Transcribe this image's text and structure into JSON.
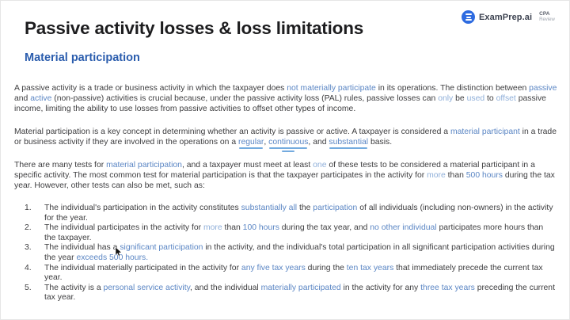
{
  "header": {
    "title": "Passive activity losses & loss limitations",
    "subtitle": "Material participation",
    "logo": {
      "brand": "ExamPrep.ai",
      "product_top": "CPA",
      "product_bottom": "Review"
    }
  },
  "colors": {
    "brand_blue": "#2e6be0",
    "subtitle_blue": "#2a5cad",
    "highlight_blue": "#5b86c4",
    "highlight_light_blue": "#8fafd9",
    "underline_blue": "#74abdf",
    "body_text": "#3d3d3f",
    "title_text": "#1d1d1f"
  },
  "content": {
    "paragraphs": [
      {
        "segments": [
          {
            "t": "A passive activity is a trade or business activity in which the taxpayer does "
          },
          {
            "t": "not materially participate",
            "c": "hl"
          },
          {
            "t": " in its operations. The distinction between "
          },
          {
            "t": "passive",
            "c": "hl"
          },
          {
            "t": " and "
          },
          {
            "t": "active",
            "c": "hl"
          },
          {
            "t": " (non-passive) activities is crucial because, under the passive activity loss (PAL) rules, passive losses can "
          },
          {
            "t": "only",
            "c": "hl2"
          },
          {
            "t": " be "
          },
          {
            "t": "used",
            "c": "hl2"
          },
          {
            "t": " to "
          },
          {
            "t": "offset",
            "c": "hl2"
          },
          {
            "t": " passive income, limiting the ability to use losses from passive activities to offset other types of income."
          }
        ]
      },
      {
        "segments": [
          {
            "t": "Material participation is a key concept in determining whether an activity is passive or active. A taxpayer is considered a "
          },
          {
            "t": "material participant",
            "c": "hl"
          },
          {
            "t": " in a trade or business activity if they are involved in the operations on a "
          },
          {
            "t": "regular",
            "c": "hl u1"
          },
          {
            "t": ", "
          },
          {
            "t": "continuous",
            "c": "hl u2"
          },
          {
            "t": ", and "
          },
          {
            "t": "substantial",
            "c": "hl u1"
          },
          {
            "t": " basis."
          }
        ]
      },
      {
        "segments": [
          {
            "t": "There are many tests for "
          },
          {
            "t": "material participation",
            "c": "hl"
          },
          {
            "t": ", and a taxpayer must meet at least "
          },
          {
            "t": "one",
            "c": "hl2"
          },
          {
            "t": " of these tests to be considered a material participant in a specific activity. The most common test for material participation is that the taxpayer participates in the activity for "
          },
          {
            "t": "more",
            "c": "hl2"
          },
          {
            "t": " than "
          },
          {
            "t": "500 hours",
            "c": "hl"
          },
          {
            "t": " during the tax year. However, other tests can also be met, such as:"
          }
        ]
      }
    ],
    "list": [
      {
        "number": "1.",
        "segments": [
          {
            "t": "The individual's participation in the activity constitutes "
          },
          {
            "t": "substantially all",
            "c": "hl"
          },
          {
            "t": " the "
          },
          {
            "t": "participation",
            "c": "hl"
          },
          {
            "t": " of all individuals (including non-owners) in the activity for the year."
          }
        ]
      },
      {
        "number": "2.",
        "segments": [
          {
            "t": "The individual participates in the activity for "
          },
          {
            "t": "more",
            "c": "hl2"
          },
          {
            "t": " than "
          },
          {
            "t": "100 hours",
            "c": "hl"
          },
          {
            "t": " during the tax year, and "
          },
          {
            "t": "no other individual",
            "c": "hl"
          },
          {
            "t": " participates more hours than the taxpayer."
          }
        ]
      },
      {
        "number": "3.",
        "segments": [
          {
            "t": "The individual has a "
          },
          {
            "t": "significant participation",
            "c": "hl"
          },
          {
            "t": " in the activity, and the individual's total participation in all significant participation activities during the year "
          },
          {
            "t": "exceeds 500 hours.",
            "c": "hl"
          }
        ]
      },
      {
        "number": "4.",
        "segments": [
          {
            "t": "The individual materially participated in the activity for "
          },
          {
            "t": "any five tax years",
            "c": "hl"
          },
          {
            "t": " during the "
          },
          {
            "t": "ten tax years",
            "c": "hl"
          },
          {
            "t": " that immediately precede the current tax year."
          }
        ]
      },
      {
        "number": "5.",
        "segments": [
          {
            "t": "The activity is a "
          },
          {
            "t": "personal service activity",
            "c": "hl"
          },
          {
            "t": ", and the individual "
          },
          {
            "t": "materially participated",
            "c": "hl"
          },
          {
            "t": " in the activity for any "
          },
          {
            "t": "three tax years",
            "c": "hl"
          },
          {
            "t": " preceding the current tax year."
          }
        ]
      }
    ]
  }
}
